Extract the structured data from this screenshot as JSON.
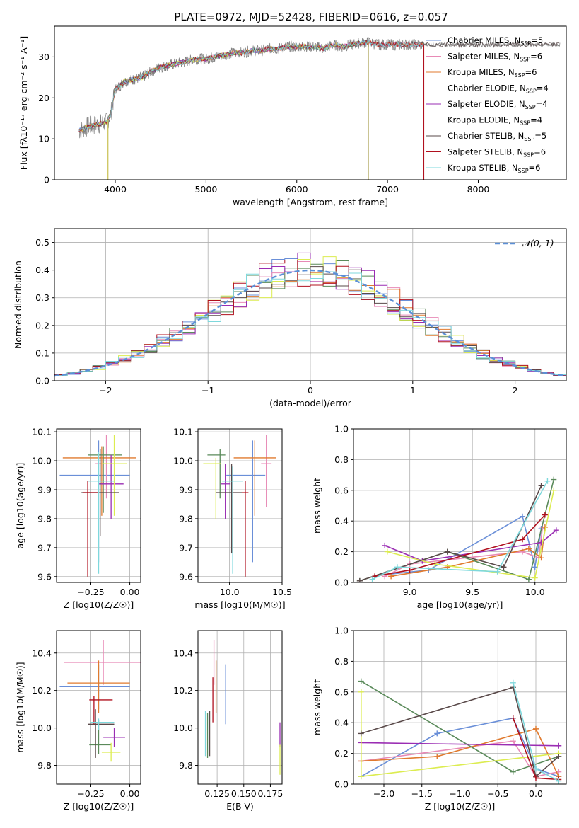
{
  "figure_title": "PLATE=0972, MJD=52428, FIBERID=0616, z=0.057",
  "series_colors": [
    "#6a8fd8",
    "#e88ab6",
    "#e07a2e",
    "#5a8a5a",
    "#9a2db3",
    "#dcec50",
    "#5a4a4a",
    "#b0101e",
    "#7ed8dc"
  ],
  "chart_data": [
    {
      "id": "spectrum",
      "type": "line",
      "xlabel": "wavelength [Angstrom, rest frame]",
      "ylabel": "Flux [fλ10⁻¹⁷ erg cm⁻² s⁻¹ A⁻¹]",
      "xlim": [
        3330,
        8970
      ],
      "ylim": [
        0,
        37.5
      ],
      "xticks": [
        4000,
        5000,
        6000,
        7000,
        8000
      ],
      "yticks": [
        0,
        10,
        20,
        30
      ],
      "data_curve": {
        "x": [
          3600,
          3700,
          3800,
          3900,
          3950,
          4000,
          4100,
          4200,
          4300,
          4400,
          4500,
          4600,
          4700,
          4800,
          4900,
          5000,
          5100,
          5200,
          5300,
          5400,
          5500,
          5600,
          5700,
          5800,
          5900,
          6000,
          6100,
          6200,
          6300,
          6400,
          6500,
          6600,
          6700,
          6800,
          6900,
          7000,
          7100,
          7200,
          7300,
          7400,
          7500,
          7600,
          7700,
          7800,
          7900,
          8000,
          8100,
          8200,
          8300,
          8400,
          8500,
          8600,
          8700,
          8800,
          8900
        ],
        "y": [
          12,
          13,
          13.5,
          14,
          16,
          22,
          24,
          24.5,
          25,
          26.5,
          27.5,
          28,
          28.5,
          29,
          29.5,
          29.5,
          30,
          30.5,
          31,
          31,
          31.5,
          31.5,
          32,
          32,
          32.5,
          32.5,
          32.5,
          32.5,
          32,
          33,
          32.5,
          33,
          33.5,
          33.5,
          33,
          33,
          33,
          33,
          33,
          33,
          33,
          33,
          33,
          33,
          33,
          33,
          33,
          33,
          33,
          33,
          33,
          33,
          33,
          33,
          33
        ]
      },
      "legend": [
        "Chabrier MILES, N_SSP=5",
        "Salpeter MILES, N_SSP=6",
        "Kroupa MILES, N_SSP=6",
        "Chabrier ELODIE, N_SSP=4",
        "Salpeter ELODIE, N_SSP=4",
        "Kroupa ELODIE, N_SSP=4",
        "Chabrier STELIB, N_SSP=5",
        "Salpeter STELIB, N_SSP=6",
        "Kroupa STELIB, N_SSP=6"
      ],
      "model_ranges": [
        [
          3600,
          7400
        ],
        [
          3600,
          7400
        ],
        [
          3600,
          7400
        ],
        [
          3600,
          6800
        ],
        [
          3600,
          6800
        ],
        [
          3600,
          6800
        ],
        [
          3600,
          8900
        ],
        [
          3600,
          7400
        ],
        [
          3600,
          7400
        ]
      ],
      "spikes": [
        3920,
        6790,
        7400
      ],
      "grid": false
    },
    {
      "id": "residuals",
      "type": "step",
      "xlabel": "(data-model)/error",
      "ylabel": "Normed distribution",
      "xlim": [
        -2.5,
        2.5
      ],
      "ylim": [
        0,
        0.55
      ],
      "xticks": [
        -2,
        -1,
        0,
        1,
        2
      ],
      "yticks": [
        0.0,
        0.1,
        0.2,
        0.3,
        0.4,
        0.5
      ],
      "reference": "N(0,1)",
      "legend": [
        "𝒩(0, 1)"
      ],
      "grid": true
    },
    {
      "id": "age_vs_Z",
      "type": "errorbar",
      "xlabel": "Z [log10(Z/Z☉)]",
      "ylabel": "age  [log10(age/yr)]",
      "xlim": [
        -0.47,
        0.07
      ],
      "ylim": [
        9.58,
        10.11
      ],
      "xticks": [
        -0.25,
        0.0
      ],
      "yticks": [
        9.6,
        9.7,
        9.8,
        9.9,
        10.0,
        10.1
      ],
      "points": [
        {
          "x": -0.2,
          "y": 9.95,
          "xerr": [
            0.25,
            0.2
          ],
          "yerr": [
            0.3,
            0.12
          ]
        },
        {
          "x": -0.15,
          "y": 9.99,
          "xerr": [
            0.07,
            0.07
          ],
          "yerr": [
            0.12,
            0.1
          ]
        },
        {
          "x": -0.18,
          "y": 10.01,
          "xerr": [
            0.25,
            0.22
          ],
          "yerr": [
            0.2,
            0.04
          ]
        },
        {
          "x": -0.17,
          "y": 10.02,
          "xerr": [
            0.1,
            0.12
          ],
          "yerr": [
            0.2,
            0.03
          ]
        },
        {
          "x": -0.12,
          "y": 9.92,
          "xerr": [
            0.08,
            0.08
          ],
          "yerr": [
            0.12,
            0.1
          ]
        },
        {
          "x": -0.1,
          "y": 9.99,
          "xerr": [
            0.08,
            0.08
          ],
          "yerr": [
            0.18,
            0.1
          ]
        },
        {
          "x": -0.19,
          "y": 9.89,
          "xerr": [
            0.12,
            0.12
          ],
          "yerr": [
            0.15,
            0.15
          ]
        },
        {
          "x": -0.27,
          "y": 9.89,
          "xerr": [
            0.03,
            0.07
          ],
          "yerr": [
            0.29,
            0.04
          ]
        },
        {
          "x": -0.2,
          "y": 9.93,
          "xerr": [
            0.07,
            0.1
          ],
          "yerr": [
            0.32,
            0.1
          ]
        }
      ],
      "grid": true
    },
    {
      "id": "age_vs_mass",
      "type": "errorbar",
      "xlabel": "mass [log10(M/M☉)]",
      "ylabel": "",
      "xlim": [
        9.7,
        10.5
      ],
      "ylim": [
        9.58,
        10.11
      ],
      "xticks": [
        10.0,
        10.5
      ],
      "yticks": [
        9.6,
        9.7,
        9.8,
        9.9,
        10.0,
        10.1
      ],
      "points": [
        {
          "x": 10.22,
          "y": 9.95,
          "xerr": [
            0.25,
            0.12
          ],
          "yerr": [
            0.3,
            0.12
          ]
        },
        {
          "x": 10.35,
          "y": 9.99,
          "xerr": [
            0.05,
            0.05
          ],
          "yerr": [
            0.15,
            0.1
          ]
        },
        {
          "x": 10.24,
          "y": 10.01,
          "xerr": [
            0.2,
            0.2
          ],
          "yerr": [
            0.2,
            0.06
          ]
        },
        {
          "x": 9.91,
          "y": 10.02,
          "xerr": [
            0.12,
            0.05
          ],
          "yerr": [
            0.15,
            0.02
          ]
        },
        {
          "x": 9.96,
          "y": 9.92,
          "xerr": [
            0.04,
            0.05
          ],
          "yerr": [
            0.12,
            0.07
          ]
        },
        {
          "x": 9.87,
          "y": 9.99,
          "xerr": [
            0.12,
            0.05
          ],
          "yerr": [
            0.19,
            0.02
          ]
        },
        {
          "x": 10.02,
          "y": 9.89,
          "xerr": [
            0.15,
            0.1
          ],
          "yerr": [
            0.21,
            0.1
          ]
        },
        {
          "x": 10.15,
          "y": 9.89,
          "xerr": [
            0.03,
            0.03
          ],
          "yerr": [
            0.29,
            0.04
          ]
        },
        {
          "x": 10.03,
          "y": 9.93,
          "xerr": [
            0.1,
            0.1
          ],
          "yerr": [
            0.32,
            0.05
          ]
        }
      ],
      "grid": true
    },
    {
      "id": "weight_vs_age",
      "type": "line",
      "xlabel": "age  [log10(age/yr)]",
      "ylabel": "mass weight",
      "xlim": [
        8.55,
        10.25
      ],
      "ylim": [
        0,
        1
      ],
      "xticks": [
        9.0,
        9.5,
        10.0
      ],
      "yticks": [
        0.0,
        0.2,
        0.4,
        0.6,
        0.8,
        1.0
      ],
      "series": [
        {
          "x": [
            8.8,
            9.15,
            9.9,
            10.0,
            10.05
          ],
          "y": [
            0.05,
            0.08,
            0.43,
            0.1,
            0.35
          ]
        },
        {
          "x": [
            8.8,
            9.0,
            9.9,
            10.03,
            10.06
          ],
          "y": [
            0.04,
            0.12,
            0.2,
            0.16,
            0.36
          ]
        },
        {
          "x": [
            8.85,
            9.3,
            9.95,
            10.05,
            10.08
          ],
          "y": [
            0.04,
            0.1,
            0.22,
            0.16,
            0.36
          ]
        },
        {
          "x": [
            8.6,
            9.3,
            9.95,
            10.15
          ],
          "y": [
            0.01,
            0.2,
            0.02,
            0.67
          ]
        },
        {
          "x": [
            8.8,
            9.1,
            10.05,
            10.17
          ],
          "y": [
            0.24,
            0.14,
            0.26,
            0.34
          ]
        },
        {
          "x": [
            8.82,
            9.2,
            10.0,
            10.15
          ],
          "y": [
            0.2,
            0.12,
            0.03,
            0.6
          ]
        },
        {
          "x": [
            8.6,
            9.3,
            9.75,
            10.05
          ],
          "y": [
            0.01,
            0.2,
            0.1,
            0.63
          ]
        },
        {
          "x": [
            8.72,
            9.0,
            9.9,
            10.08
          ],
          "y": [
            0.04,
            0.08,
            0.28,
            0.44
          ]
        },
        {
          "x": [
            8.7,
            8.9,
            9.7,
            10.1
          ],
          "y": [
            0.02,
            0.1,
            0.07,
            0.66
          ]
        }
      ],
      "grid": true
    },
    {
      "id": "mass_vs_Z",
      "type": "errorbar",
      "xlabel": "Z [log10(Z/Z☉)]",
      "ylabel": "mass [log10(M/M☉)]",
      "xlim": [
        -0.47,
        0.07
      ],
      "ylim": [
        9.7,
        10.52
      ],
      "xticks": [
        -0.25,
        0.0
      ],
      "yticks": [
        9.8,
        10.0,
        10.2,
        10.4
      ],
      "points": [
        {
          "x": -0.2,
          "y": 10.22,
          "xerr": [
            0.25,
            0.2
          ],
          "yerr": [
            0.12,
            0.12
          ]
        },
        {
          "x": -0.17,
          "y": 10.35,
          "xerr": [
            0.25,
            0.25
          ],
          "yerr": [
            0.12,
            0.12
          ]
        },
        {
          "x": -0.2,
          "y": 10.24,
          "xerr": [
            0.2,
            0.2
          ],
          "yerr": [
            0.16,
            0.12
          ]
        },
        {
          "x": -0.2,
          "y": 9.91,
          "xerr": [
            0.06,
            0.08
          ],
          "yerr": [
            0.05,
            0.13
          ]
        },
        {
          "x": -0.1,
          "y": 9.95,
          "xerr": [
            0.07,
            0.07
          ],
          "yerr": [
            0.05,
            0.05
          ]
        },
        {
          "x": -0.12,
          "y": 9.87,
          "xerr": [
            0.06,
            0.06
          ],
          "yerr": [
            0.05,
            0.05
          ]
        },
        {
          "x": -0.22,
          "y": 10.02,
          "xerr": [
            0.05,
            0.12
          ],
          "yerr": [
            0.18,
            0.08
          ]
        },
        {
          "x": -0.23,
          "y": 10.15,
          "xerr": [
            0.03,
            0.12
          ],
          "yerr": [
            0.13,
            0.02
          ]
        },
        {
          "x": -0.2,
          "y": 10.03,
          "xerr": [
            0.05,
            0.1
          ],
          "yerr": [
            0.04,
            0.02
          ]
        }
      ],
      "grid": true
    },
    {
      "id": "mass_vs_EBV",
      "type": "errorbar",
      "xlabel": "E(B-V)",
      "ylabel": "",
      "xlim": [
        0.107,
        0.186
      ],
      "ylim": [
        9.7,
        10.52
      ],
      "xticks": [
        0.125,
        0.15,
        0.175
      ],
      "yticks": [
        9.8,
        10.0,
        10.2,
        10.4
      ],
      "points": [
        {
          "x": 0.133,
          "y": 10.22,
          "xerr": [
            0.0,
            0.0
          ],
          "yerr": [
            0.2,
            0.12
          ]
        },
        {
          "x": 0.122,
          "y": 10.35,
          "xerr": [
            0.0,
            0.0
          ],
          "yerr": [
            0.12,
            0.12
          ]
        },
        {
          "x": 0.124,
          "y": 10.24,
          "xerr": [
            0.0,
            0.0
          ],
          "yerr": [
            0.16,
            0.12
          ]
        },
        {
          "x": 0.116,
          "y": 9.96,
          "xerr": [
            0.0,
            0.0
          ],
          "yerr": [
            0.12,
            0.12
          ]
        },
        {
          "x": 0.184,
          "y": 9.95,
          "xerr": [
            0.0,
            0.0
          ],
          "yerr": [
            0.05,
            0.08
          ]
        },
        {
          "x": 0.184,
          "y": 9.83,
          "xerr": [
            0.0,
            0.0
          ],
          "yerr": [
            0.08,
            0.08
          ]
        },
        {
          "x": 0.118,
          "y": 9.97,
          "xerr": [
            0.0,
            0.0
          ],
          "yerr": [
            0.12,
            0.12
          ]
        },
        {
          "x": 0.121,
          "y": 10.15,
          "xerr": [
            0.0,
            0.0
          ],
          "yerr": [
            0.12,
            0.12
          ]
        },
        {
          "x": 0.114,
          "y": 9.97,
          "xerr": [
            0.0,
            0.0
          ],
          "yerr": [
            0.12,
            0.12
          ]
        }
      ],
      "grid": true
    },
    {
      "id": "weight_vs_Z",
      "type": "line",
      "xlabel": "Z [log10(Z/Z☉)]",
      "ylabel": "mass weight",
      "xlim": [
        -2.4,
        0.4
      ],
      "ylim": [
        0,
        1
      ],
      "xticks": [
        -2.0,
        -1.5,
        -1.0,
        -0.5,
        0.0
      ],
      "yticks": [
        0.0,
        0.2,
        0.4,
        0.6,
        0.8,
        1.0
      ],
      "series": [
        {
          "x": [
            -2.3,
            -1.3,
            -0.3,
            0.0,
            0.3
          ],
          "y": [
            0.05,
            0.33,
            0.43,
            0.1,
            0.05
          ]
        },
        {
          "x": [
            -2.3,
            -0.3,
            0.0,
            0.3
          ],
          "y": [
            0.15,
            0.28,
            0.05,
            0.08
          ]
        },
        {
          "x": [
            -2.3,
            -1.3,
            0.0,
            0.3
          ],
          "y": [
            0.15,
            0.18,
            0.36,
            0.05
          ]
        },
        {
          "x": [
            -2.3,
            -0.3,
            0.3
          ],
          "y": [
            0.67,
            0.08,
            0.18
          ]
        },
        {
          "x": [
            -2.3,
            0.3
          ],
          "y": [
            0.27,
            0.25
          ]
        },
        {
          "x": [
            -2.3,
            -2.3,
            0.3
          ],
          "y": [
            0.6,
            0.05,
            0.2
          ]
        },
        {
          "x": [
            -2.3,
            -0.3,
            0.0,
            0.3
          ],
          "y": [
            0.33,
            0.63,
            0.05,
            0.18
          ]
        },
        {
          "x": [
            -0.3,
            0.0,
            0.3
          ],
          "y": [
            0.43,
            0.04,
            0.03
          ]
        },
        {
          "x": [
            -0.3,
            0.0,
            0.3
          ],
          "y": [
            0.66,
            0.1,
            0.02
          ]
        }
      ],
      "grid": true
    }
  ]
}
